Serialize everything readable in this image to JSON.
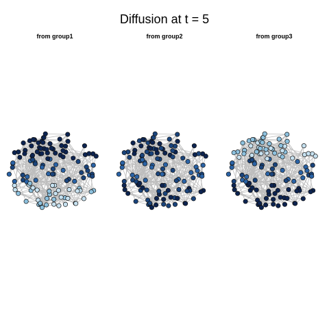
{
  "title": "Diffusion at t = 5",
  "panels": [
    {
      "label": "from group1",
      "source_group": 1
    },
    {
      "label": "from group2",
      "source_group": 2
    },
    {
      "label": "from group3",
      "source_group": 3
    }
  ],
  "colors": {
    "edge": "#bdbdbd",
    "node_border": "#111111",
    "scale": [
      "#c6e1f0",
      "#8dc1de",
      "#4a8cc4",
      "#2a63a6",
      "#1a447c",
      "#0d2451"
    ]
  },
  "chart_data": {
    "type": "network",
    "title": "Diffusion at t = 5",
    "n_nodes": 120,
    "groups": 3,
    "time": 5
  }
}
